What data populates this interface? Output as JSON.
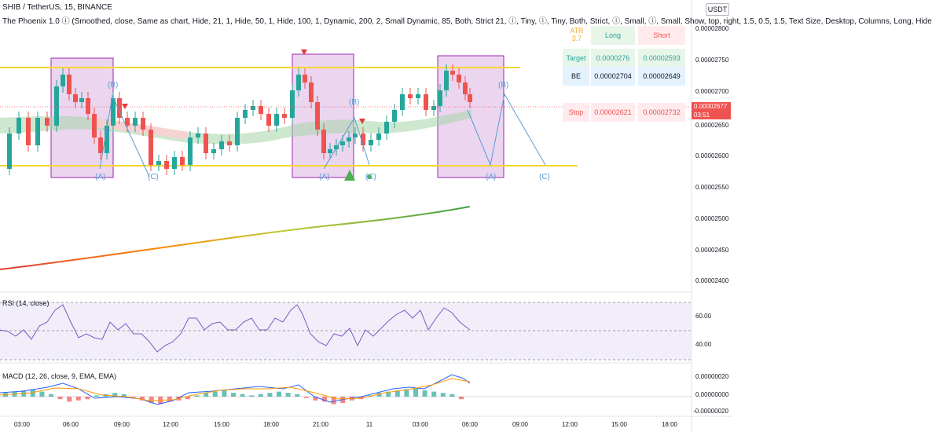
{
  "header": {
    "title": "SHIB / TetherUS, 15, BINANCE",
    "indicator": "The Phoenix 1.0 ⓘ (Smoothed, close, Same as chart, Hide, 21, 1, Hide, 50, 1, Hide, 100, 1, Dynamic, 200, 2, Small Dynamic, 85, Both, Strict 21, ⓘ, Tiny, ⓘ, Tiny, Both, Strict, ⓘ, Small, ⓘ, Small, Show, top, right, 1.5, 0.5, 1.5, Text Size, Desktop, Columns, Long, Hide"
  },
  "currency_button": "USDT",
  "price_axis": {
    "ticks": [
      "0.00002800",
      "0.00002750",
      "0.00002700",
      "0.00002650",
      "0.00002600",
      "0.00002550",
      "0.00002500",
      "0.00002450",
      "0.00002400"
    ],
    "current_price": "0.00002677",
    "countdown": "03:51"
  },
  "info_table": {
    "atr_label": "ATR",
    "atr_value": "3.7",
    "col_long": "Long",
    "col_short": "Short",
    "row_target": "Target",
    "target_long": "0.0000276",
    "target_short": "0.00002593",
    "row_be": "BE",
    "be_long": "0.00002704",
    "be_short": "0.00002649",
    "row_stop": "Stop",
    "stop_long": "0.00002621",
    "stop_short": "0.00002732"
  },
  "wave_labels": [
    "(A)",
    "(B)",
    "(C)",
    "(A)",
    "(B)",
    "(C)",
    "(A)",
    "(B)",
    "(C)"
  ],
  "rsi": {
    "label": "RSI (14, close)",
    "ticks": [
      "60.00",
      "40.00"
    ]
  },
  "macd": {
    "label": "MACD (12, 26, close, 9, EMA, EMA)",
    "ticks": [
      "0.00000020",
      "0.00000000",
      "-0.00000020"
    ]
  },
  "time_axis": [
    "03:00",
    "06:00",
    "09:00",
    "12:00",
    "15:00",
    "18:00",
    "21:00",
    "11",
    "03:00",
    "06:00",
    "09:00",
    "12:00",
    "15:00",
    "18:00"
  ],
  "colors": {
    "up": "#26a69a",
    "down": "#ef5350",
    "yellow_line": "#f7d631",
    "box_fill": "#e1bee7",
    "box_border": "#9c27b0",
    "wave_line": "#5b9bd5"
  }
}
